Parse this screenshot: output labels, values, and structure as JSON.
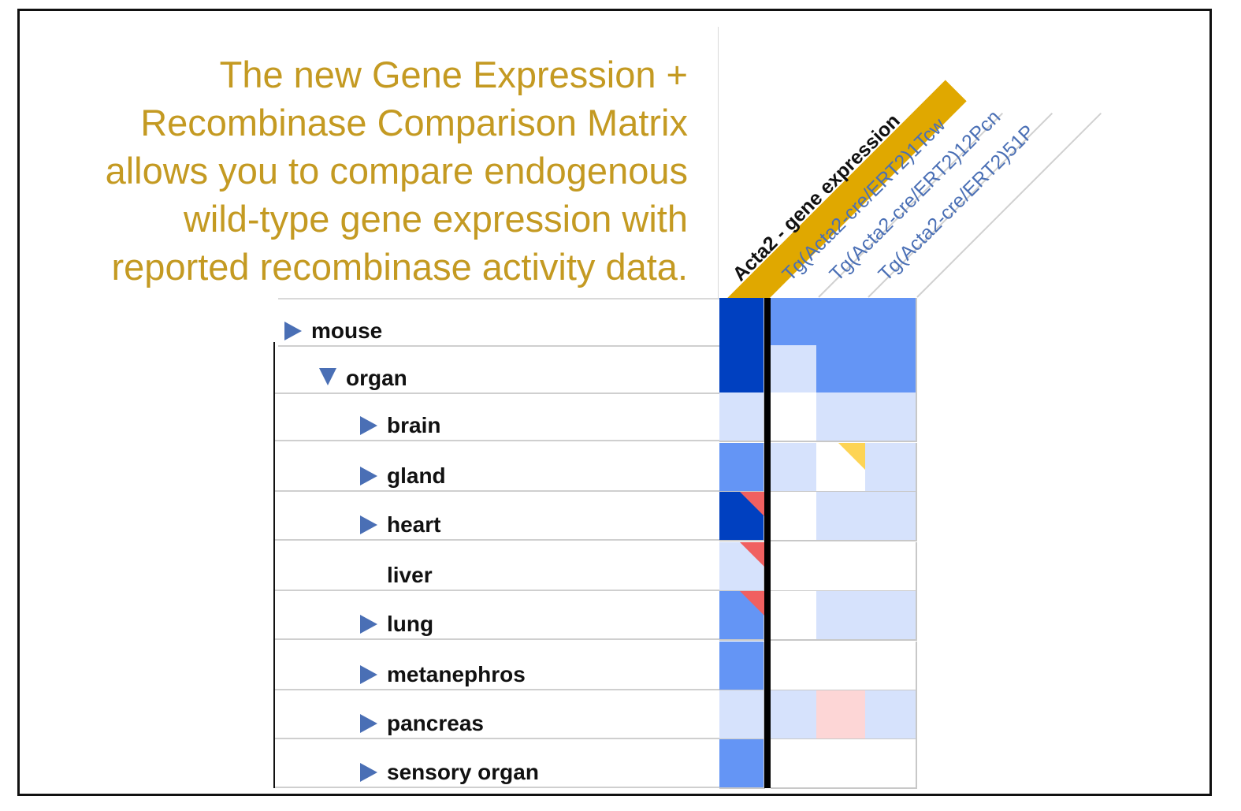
{
  "caption": {
    "lines": [
      "The new Gene Expression +",
      "Recombinase Comparison Matrix",
      "allows you to compare endogenous",
      "wild-type gene expression with",
      "reported recombinase activity data."
    ]
  },
  "colors": {
    "caption": "#c49a22",
    "expander": "#4a6fb5",
    "header_highlight": "#e0a800",
    "strong": "#0040c0",
    "medium": "#6495f5",
    "light": "#d6e2fc",
    "empty": "#ffffff",
    "recombinase_pink": "#fdd6d6",
    "flag_red": "#f06060",
    "flag_yellow": "#fdd455"
  },
  "matrix": {
    "columns": [
      {
        "label": "Acta2 - gene expression",
        "kind": "gene-expression"
      },
      {
        "label": "Tg(Acta2-cre/ERT2)1Tcw",
        "kind": "recombinase"
      },
      {
        "label": "Tg(Acta2-cre/ERT2)12Pcn",
        "kind": "recombinase"
      },
      {
        "label": "Tg(Acta2-cre/ERT2)51P",
        "kind": "recombinase"
      }
    ],
    "rows": [
      {
        "label": "mouse",
        "expander": "collapsed",
        "level": 0,
        "cells": [
          "strong",
          "medium",
          "medium",
          "medium"
        ],
        "flags": []
      },
      {
        "label": "organ",
        "expander": "expanded",
        "level": 1,
        "cells": [
          "strong",
          "light",
          "medium",
          "medium"
        ],
        "flags": []
      },
      {
        "label": "brain",
        "expander": "collapsed",
        "level": 2,
        "cells": [
          "light",
          "empty",
          "light",
          "light"
        ],
        "flags": []
      },
      {
        "label": "gland",
        "expander": "collapsed",
        "level": 2,
        "cells": [
          "medium",
          "light",
          "empty",
          "light"
        ],
        "flags": [
          {
            "col": 2,
            "color": "flag_yellow"
          }
        ]
      },
      {
        "label": "heart",
        "expander": "collapsed",
        "level": 2,
        "cells": [
          "strong",
          "empty",
          "light",
          "light"
        ],
        "flags": [
          {
            "col": 0,
            "color": "flag_red"
          }
        ]
      },
      {
        "label": "liver",
        "expander": "none",
        "level": 2,
        "cells": [
          "light",
          "empty",
          "empty",
          "empty"
        ],
        "flags": [
          {
            "col": 0,
            "color": "flag_red"
          }
        ]
      },
      {
        "label": "lung",
        "expander": "collapsed",
        "level": 2,
        "cells": [
          "medium",
          "empty",
          "light",
          "light"
        ],
        "flags": [
          {
            "col": 0,
            "color": "flag_red"
          }
        ]
      },
      {
        "label": "metanephros",
        "expander": "collapsed",
        "level": 2,
        "cells": [
          "medium",
          "empty",
          "empty",
          "empty"
        ],
        "flags": []
      },
      {
        "label": "pancreas",
        "expander": "collapsed",
        "level": 2,
        "cells": [
          "light",
          "light",
          "recombinase_pink",
          "light"
        ],
        "flags": []
      },
      {
        "label": "sensory organ",
        "expander": "collapsed",
        "level": 2,
        "cells": [
          "medium",
          "empty",
          "empty",
          "empty"
        ],
        "flags": []
      }
    ]
  }
}
